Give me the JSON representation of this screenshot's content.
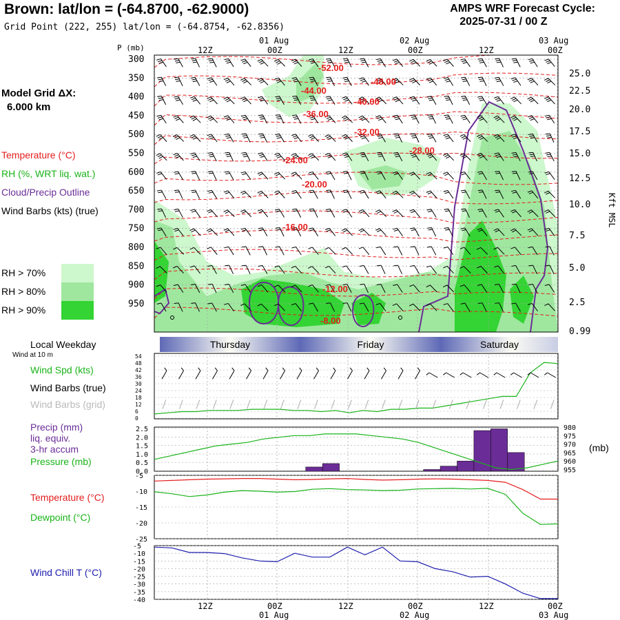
{
  "header": {
    "title": "Brown:  lat/lon = (-64.8700, -62.9000)",
    "subtitle": "Grid Point (222, 255) lat/lon = (-64.8754, -62.8356)",
    "cycle_line1": "AMPS WRF Forecast Cycle:",
    "cycle_line2": "2025-07-31 / 00  Z"
  },
  "grid": {
    "line1": "Model Grid ΔX:",
    "line2": "6.000 km"
  },
  "legend": {
    "temperature": "Temperature (°C)",
    "rh": "RH (%, WRT liq. wat.)",
    "cloud": "Cloud/Precip Outline",
    "wind": "Wind Barbs (kts) (true)",
    "rh70": "RH > 70%",
    "rh80": "RH > 80%",
    "rh90": "RH > 90%",
    "local_weekday": "Local Weekday",
    "wind10m": "Wind at 10 m",
    "wind_spd": "Wind Spd (kts)",
    "barbs_true": "Wind Barbs (true)",
    "barbs_grid": "Wind Barbs (grid)",
    "precip1": "Precip (mm)",
    "precip2": "liq. equiv.",
    "precip3": "3-hr accum",
    "pressure": "Pressure (mb)",
    "pressure_unit": "(mb)",
    "temp2": "Temperature (°C)",
    "dewpoint": "Dewpoint (°C)",
    "windchill": "Wind Chill T (°C)"
  },
  "colors": {
    "rh70": "#cdf7cd",
    "rh80": "#9fe79f",
    "rh90": "#33d433",
    "temperature": "#e51d1d",
    "dewpoint": "#19b319",
    "cloud": "#6a2c96",
    "windchill": "#1c1cae",
    "precip": "#6a2c96",
    "grid": "#a8a8a8"
  },
  "chart_data": [
    {
      "type": "heatmap",
      "name": "cross-section",
      "y_axis_label": "P (mb)",
      "y_right_label": "Kft MSL",
      "x_ticks_top": [
        "12Z",
        "00Z",
        "12Z",
        "00Z",
        "12Z",
        "00Z"
      ],
      "x_dates_top": [
        "01 Aug",
        "02 Aug",
        "03 Aug"
      ],
      "pressure_levels": [
        300,
        350,
        400,
        450,
        500,
        550,
        600,
        650,
        700,
        750,
        800,
        850,
        900,
        950
      ],
      "kft_labels": [
        "25.0",
        "22.5",
        "20.0",
        "17.5",
        "15.0",
        "12.5",
        "10.0",
        "7.5",
        "5.0",
        "2.5",
        "0.99"
      ],
      "temperature_labels": [
        "-52.00",
        "-48.00",
        "-44.00",
        "-40.00",
        "-36.00",
        "-32.00",
        "-28.00",
        "-24.00",
        "-20.00",
        "-16.00",
        "-12.00",
        "-8.00"
      ]
    },
    {
      "type": "line",
      "name": "days",
      "days": [
        "Thursday",
        "Friday",
        "Saturday"
      ]
    },
    {
      "type": "line",
      "name": "wind",
      "yticks": [
        "54",
        "48",
        "42",
        "36",
        "30",
        "24",
        "18",
        "12",
        "6",
        "0"
      ],
      "series": [
        {
          "values": [
            3,
            4,
            5,
            5,
            6,
            6,
            6,
            7,
            7,
            7,
            6,
            6,
            5,
            6,
            4,
            6,
            5,
            7,
            7,
            8,
            8,
            10,
            12,
            14,
            16,
            18,
            18,
            38,
            47,
            46
          ]
        }
      ]
    },
    {
      "type": "bar",
      "name": "precip_pressure",
      "yticks_left": [
        "2.5",
        "2.0",
        "1.5",
        "1.0",
        "0.5",
        "0.0"
      ],
      "yticks_right": [
        "980",
        "975",
        "970",
        "965",
        "960",
        "955"
      ],
      "precip": [
        0,
        0,
        0,
        0,
        0,
        0,
        0,
        0,
        0,
        0.25,
        0.45,
        0,
        0,
        0,
        0,
        0,
        0.1,
        0.3,
        0.6,
        2.4,
        2.5,
        1.1,
        0,
        0
      ],
      "pressure": [
        962,
        964,
        966,
        968,
        970,
        971,
        972,
        974,
        975,
        976,
        976,
        977,
        977,
        977,
        976,
        975,
        974,
        972,
        969,
        966,
        963,
        960,
        957,
        956,
        957,
        959,
        961
      ]
    },
    {
      "type": "line",
      "name": "temp_dew",
      "yticks": [
        "-5",
        "-10",
        "-15",
        "-20",
        "-25"
      ],
      "series": [
        {
          "values": [
            -6.8,
            -6.6,
            -6.4,
            -6.2,
            -6.1,
            -6.0,
            -6.0,
            -6.2,
            -6.4,
            -6.3,
            -6.1,
            -6.0,
            -6.3,
            -6.5,
            -6.4,
            -6.2,
            -6.1,
            -6.2,
            -6.4,
            -6.6,
            -7.2,
            -9.5,
            -12.5,
            -12.5
          ]
        },
        {
          "values": [
            -10.2,
            -10.8,
            -11.7,
            -11.2,
            -10.3,
            -9.8,
            -10.0,
            -10.3,
            -10.1,
            -9.4,
            -9.2,
            -9.5,
            -9.6,
            -9.8,
            -9.7,
            -9.3,
            -9.2,
            -9.1,
            -9.3,
            -9.1,
            -11.0,
            -17.0,
            -20.5,
            -20.3
          ]
        }
      ]
    },
    {
      "type": "line",
      "name": "windchill",
      "yticks": [
        "-5",
        "-10",
        "-15",
        "-20",
        "-25",
        "-30",
        "-35",
        "-40"
      ],
      "x_ticks_bottom": [
        "12Z",
        "00Z",
        "12Z",
        "00Z",
        "12Z",
        "00Z"
      ],
      "x_dates_bottom": [
        "01 Aug",
        "02 Aug",
        "03 Aug"
      ],
      "series": [
        {
          "values": [
            -6,
            -6.5,
            -9.5,
            -9.5,
            -10.2,
            -13,
            -15,
            -15.5,
            -10,
            -12.5,
            -12.5,
            -6,
            -11,
            -6,
            -15,
            -15.5,
            -20,
            -22,
            -25.5,
            -25,
            -30,
            -36,
            -39.5,
            -39.5
          ]
        }
      ]
    }
  ]
}
